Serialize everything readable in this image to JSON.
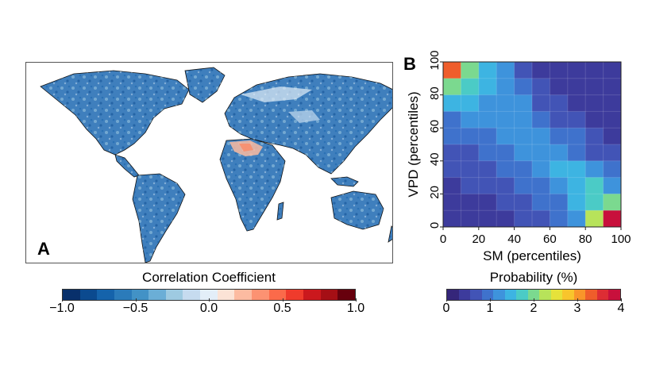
{
  "panel_a": {
    "letter": "A",
    "colorbar": {
      "title": "Correlation Coefficient",
      "min": -1.0,
      "max": 1.0,
      "ticks": [
        "−1.0",
        "−0.5",
        "0.0",
        "0.5",
        "1.0"
      ],
      "tick_values": [
        -1.0,
        -0.5,
        0.0,
        0.5,
        1.0
      ],
      "colors": [
        "#08306b",
        "#0b4a8f",
        "#1563ab",
        "#2b7bba",
        "#4292c6",
        "#6baed6",
        "#9ecae1",
        "#c6dbef",
        "#e3eef8",
        "#fbe3d6",
        "#fcbba1",
        "#fc9272",
        "#fb6a4a",
        "#ef3b2c",
        "#cb181d",
        "#a50f15",
        "#67000d"
      ]
    },
    "land_color": "#3f7fbd",
    "ocean_color": "#ffffff"
  },
  "panel_b": {
    "letter": "B",
    "xlabel": "SM (percentiles)",
    "ylabel": "VPD (percentiles)",
    "xticks": [
      "0",
      "20",
      "40",
      "60",
      "80",
      "100"
    ],
    "yticks": [
      "0",
      "20",
      "40",
      "60",
      "80",
      "100"
    ],
    "colorbar": {
      "title": "Probability (%)",
      "min": 0,
      "max": 4,
      "ticks": [
        "0",
        "1",
        "2",
        "3",
        "4"
      ],
      "tick_values": [
        0,
        1,
        2,
        3,
        4
      ],
      "colors": [
        "#35267a",
        "#3d3b9c",
        "#4254b6",
        "#3f72cc",
        "#3e93dc",
        "#3db4e2",
        "#4bcbc6",
        "#7bd98f",
        "#b7e35a",
        "#e6e23a",
        "#f8c52c",
        "#f9952a",
        "#ef5d2b",
        "#dd2d34",
        "#c8103c"
      ]
    }
  },
  "chart_data": [
    {
      "type": "heatmap",
      "title": "",
      "xlabel": "",
      "ylabel": "",
      "colorbar_label": "Correlation Coefficient",
      "value_range": [
        -1.0,
        1.0
      ],
      "description_values": {
        "dominant_land_value": -0.6,
        "sahara_value": 0.4
      }
    },
    {
      "type": "heatmap",
      "xlabel": "SM (percentiles)",
      "ylabel": "VPD (percentiles)",
      "xlim": [
        0,
        100
      ],
      "ylim": [
        0,
        100
      ],
      "colorbar_label": "Probability (%)",
      "value_range": [
        0,
        4
      ],
      "bins": 10,
      "x_bin_centers": [
        5,
        15,
        25,
        35,
        45,
        55,
        65,
        75,
        85,
        95
      ],
      "y_bin_centers": [
        95,
        85,
        75,
        65,
        55,
        45,
        35,
        25,
        15,
        5
      ],
      "z": [
        [
          3.3,
          1.9,
          1.5,
          1.1,
          0.6,
          0.5,
          0.5,
          0.4,
          0.3,
          0.3
        ],
        [
          2.0,
          1.7,
          1.4,
          1.3,
          0.8,
          0.6,
          0.5,
          0.5,
          0.4,
          0.3
        ],
        [
          1.4,
          1.4,
          1.3,
          1.3,
          1.1,
          0.7,
          0.6,
          0.5,
          0.4,
          0.4
        ],
        [
          1.0,
          1.2,
          1.3,
          1.3,
          1.3,
          1.0,
          0.7,
          0.6,
          0.5,
          0.5
        ],
        [
          0.8,
          0.9,
          1.0,
          1.2,
          1.3,
          1.2,
          1.0,
          0.8,
          0.6,
          0.5
        ],
        [
          0.6,
          0.7,
          0.8,
          0.9,
          1.1,
          1.3,
          1.3,
          1.0,
          0.7,
          0.6
        ],
        [
          0.6,
          0.6,
          0.7,
          0.8,
          0.9,
          1.1,
          1.5,
          1.4,
          1.3,
          0.9
        ],
        [
          0.5,
          0.6,
          0.6,
          0.7,
          0.8,
          0.9,
          1.2,
          1.4,
          1.6,
          1.3
        ],
        [
          0.5,
          0.5,
          0.5,
          0.6,
          0.7,
          0.8,
          1.0,
          1.4,
          1.8,
          1.9
        ],
        [
          0.4,
          0.4,
          0.5,
          0.5,
          0.6,
          0.7,
          0.9,
          1.3,
          2.2,
          3.8
        ]
      ]
    }
  ]
}
